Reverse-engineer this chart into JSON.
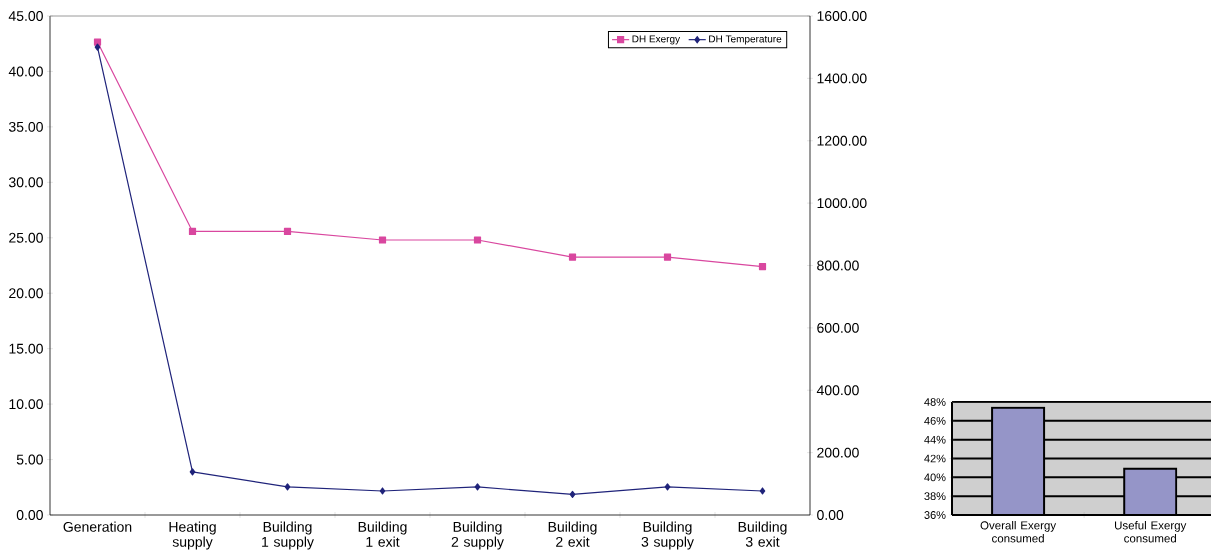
{
  "chart_data": [
    {
      "type": "line",
      "categories": [
        "Generation",
        "Heating supply",
        "Building 1 supply",
        "Building 1 exit",
        "Building 2 supply",
        "Building 2 exit",
        "Building 3 supply",
        "Building 3 exit"
      ],
      "series": [
        {
          "name": "DH Exergy",
          "color": "#d9479f",
          "marker": "square",
          "values": [
            42.65,
            25.57,
            25.57,
            24.8,
            24.8,
            23.26,
            23.26,
            22.4
          ]
        },
        {
          "name": "DH Temperature",
          "color": "#1f237a",
          "marker": "diamond",
          "axis": "y2",
          "values": [
            1500,
            138,
            90,
            77,
            90,
            66,
            90,
            77
          ]
        }
      ],
      "ylim": [
        0,
        45
      ],
      "yticks": [
        {
          "value": 0,
          "label": "0.00"
        },
        {
          "value": 5,
          "label": "5.00"
        },
        {
          "value": 10,
          "label": "10.00"
        },
        {
          "value": 15,
          "label": "15.00"
        },
        {
          "value": 20,
          "label": "20.00"
        },
        {
          "value": 25,
          "label": "25.00"
        },
        {
          "value": 30,
          "label": "30.00"
        },
        {
          "value": 35,
          "label": "35.00"
        },
        {
          "value": 40,
          "label": "40.00"
        },
        {
          "value": 45,
          "label": "45.00"
        }
      ],
      "y2lim": [
        0,
        1600
      ],
      "y2ticks": [
        {
          "value": 0,
          "label": "0.00"
        },
        {
          "value": 200,
          "label": "200.00"
        },
        {
          "value": 400,
          "label": "400.00"
        },
        {
          "value": 600,
          "label": "600.00"
        },
        {
          "value": 800,
          "label": "800.00"
        },
        {
          "value": 1000,
          "label": "1000.00"
        },
        {
          "value": 1200,
          "label": "1200.00"
        },
        {
          "value": 1400,
          "label": "1400.00"
        },
        {
          "value": 1600,
          "label": "1600.00"
        }
      ],
      "legend": "top right"
    },
    {
      "type": "bar",
      "categories": [
        "Overall Exergy consumed",
        "Useful Exergy consumed"
      ],
      "values": [
        47.4,
        40.9
      ],
      "color": "#9595c8",
      "ylim": [
        36,
        48
      ],
      "yticks": [
        {
          "value": 36,
          "label": "36%"
        },
        {
          "value": 38,
          "label": "38%"
        },
        {
          "value": 40,
          "label": "40%"
        },
        {
          "value": 42,
          "label": "42%"
        },
        {
          "value": 44,
          "label": "44%"
        },
        {
          "value": 46,
          "label": "46%"
        },
        {
          "value": 48,
          "label": "48%"
        }
      ],
      "grid": "y"
    }
  ]
}
